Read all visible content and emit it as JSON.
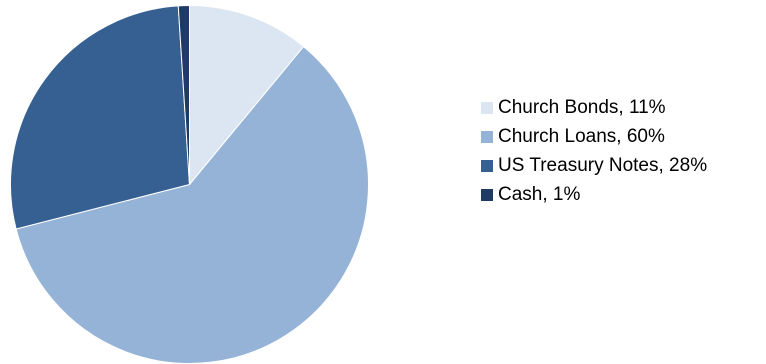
{
  "chart_data": {
    "type": "pie",
    "title": "",
    "categories": [
      "Church Bonds",
      "Church Loans",
      "US Treasury Notes",
      "Cash"
    ],
    "values": [
      11,
      60,
      28,
      1
    ],
    "units": "%",
    "slices": [
      {
        "label": "Church Bonds, 11%",
        "value": 11,
        "color": "#dce6f2"
      },
      {
        "label": "Church Loans, 60%",
        "value": 60,
        "color": "#95b3d7"
      },
      {
        "label": "US Treasury Notes, 28%",
        "value": 28,
        "color": "#376092"
      },
      {
        "label": "Cash, 1%",
        "value": 1,
        "color": "#1f3b63"
      }
    ],
    "start": "12 o'clock",
    "direction": "clockwise",
    "legend_position": "right"
  }
}
